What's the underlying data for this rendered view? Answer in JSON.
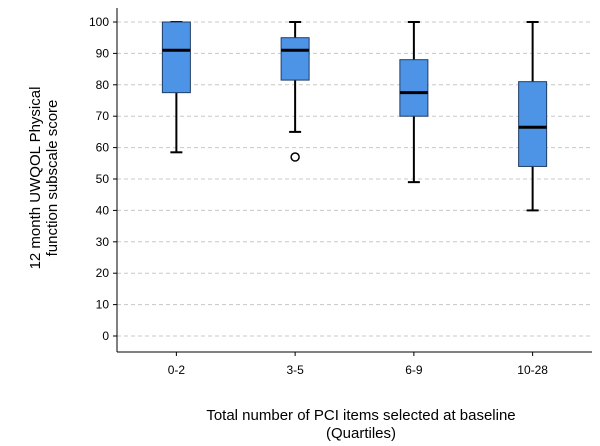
{
  "chart_data": {
    "type": "boxplot",
    "xlabel_lines": [
      "Total number of PCI items selected at baseline",
      "(Quartiles)"
    ],
    "ylabel_lines": [
      "12 month UWQOL Physical",
      "function subscale score"
    ],
    "ylim": [
      0,
      100
    ],
    "yticks": [
      0,
      10,
      20,
      30,
      40,
      50,
      60,
      70,
      80,
      90,
      100
    ],
    "grid": "horizontal-dashed",
    "box_color": "#4d94e6",
    "categories": [
      "0-2",
      "3-5",
      "6-9",
      "10-28"
    ],
    "boxes": [
      {
        "category": "0-2",
        "whisker_low": 58.5,
        "q1": 77.5,
        "median": 91,
        "q3": 100,
        "whisker_high": 100,
        "outliers": []
      },
      {
        "category": "3-5",
        "whisker_low": 65,
        "q1": 81.5,
        "median": 91,
        "q3": 95,
        "whisker_high": 100,
        "outliers": [
          57
        ]
      },
      {
        "category": "6-9",
        "whisker_low": 49,
        "q1": 70,
        "median": 77.5,
        "q3": 88,
        "whisker_high": 100,
        "outliers": []
      },
      {
        "category": "10-28",
        "whisker_low": 40,
        "q1": 54,
        "median": 66.5,
        "q3": 81,
        "whisker_high": 100,
        "outliers": []
      }
    ]
  }
}
